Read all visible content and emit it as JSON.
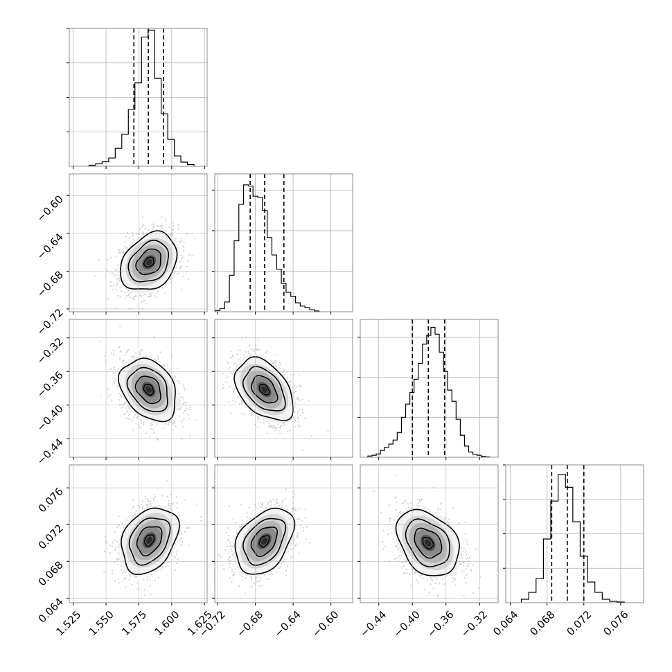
{
  "chart_data": {
    "type": "corner",
    "grid": true,
    "colors": {
      "hist": "#000000",
      "contour": "#000000",
      "scatter": "#9a9a9a",
      "grid": "#b0b0b0",
      "axes": "#888888"
    },
    "params": [
      {
        "lim": [
          1.522,
          1.627
        ],
        "ticks": [
          1.525,
          1.55,
          1.575,
          1.6,
          1.625
        ],
        "tick_labels": [
          "1.525",
          "1.550",
          "1.575",
          "1.600",
          "1.625"
        ],
        "hist_max": 4.0,
        "hist_yticks": [
          1,
          2,
          3,
          4
        ],
        "quantiles": [
          1.5712,
          1.5822,
          1.5938
        ],
        "hist": {
          "edges": [
            1.537,
            1.542,
            1.547,
            1.552,
            1.557,
            1.562,
            1.567,
            1.572,
            1.577,
            1.582,
            1.587,
            1.592,
            1.597,
            1.602,
            1.607,
            1.612,
            1.617
          ],
          "counts": [
            0.03,
            0.07,
            0.13,
            0.24,
            0.52,
            0.93,
            1.65,
            2.42,
            3.75,
            3.95,
            2.55,
            1.52,
            0.78,
            0.3,
            0.12,
            0.05
          ]
        }
      },
      {
        "lim": [
          -0.723,
          -0.577
        ],
        "ticks": [
          -0.72,
          -0.68,
          -0.64,
          -0.6
        ],
        "tick_labels": [
          "−0.72",
          "−0.68",
          "−0.64",
          "−0.60"
        ],
        "hist_max": 3.4,
        "hist_yticks": [
          1,
          2,
          3
        ],
        "quantiles": [
          -0.6855,
          -0.6702,
          -0.6498
        ],
        "hist": {
          "edges": [
            -0.7225,
            -0.7175,
            -0.7125,
            -0.7075,
            -0.7025,
            -0.6975,
            -0.6925,
            -0.6875,
            -0.6825,
            -0.6775,
            -0.6725,
            -0.6675,
            -0.6625,
            -0.6575,
            -0.6525,
            -0.6475,
            -0.6425,
            -0.6375,
            -0.6325,
            -0.6275,
            -0.6225,
            -0.6175,
            -0.6125
          ],
          "counts": [
            0.03,
            0.08,
            0.24,
            0.9,
            1.75,
            2.65,
            3.13,
            3.1,
            2.85,
            2.82,
            2.5,
            1.83,
            1.4,
            1.05,
            0.7,
            0.48,
            0.38,
            0.22,
            0.14,
            0.1,
            0.05,
            0.02
          ]
        }
      },
      {
        "lim": [
          -0.462,
          -0.298
        ],
        "ticks": [
          -0.44,
          -0.4,
          -0.36,
          -0.32
        ],
        "tick_labels": [
          "−0.44",
          "−0.40",
          "−0.36",
          "−0.32"
        ],
        "hist_max": 3.45,
        "hist_yticks": [
          1,
          2,
          3
        ],
        "quantiles": [
          -0.4,
          -0.381,
          -0.3617
        ],
        "hist": {
          "edges": [
            -0.453,
            -0.448,
            -0.443,
            -0.438,
            -0.433,
            -0.428,
            -0.423,
            -0.418,
            -0.413,
            -0.408,
            -0.403,
            -0.398,
            -0.393,
            -0.388,
            -0.383,
            -0.378,
            -0.373,
            -0.368,
            -0.363,
            -0.358,
            -0.353,
            -0.348,
            -0.343,
            -0.338,
            -0.333,
            -0.328,
            -0.323,
            -0.318,
            -0.313,
            -0.308
          ],
          "counts": [
            0.03,
            0.05,
            0.08,
            0.17,
            0.25,
            0.33,
            0.43,
            0.62,
            1.0,
            1.33,
            1.62,
            1.95,
            2.35,
            2.83,
            3.05,
            3.25,
            3.08,
            2.63,
            2.15,
            1.68,
            1.4,
            0.95,
            0.55,
            0.28,
            0.13,
            0.07,
            0.05,
            0.02,
            0.01
          ]
        }
      },
      {
        "lim": [
          0.0635,
          0.0785
        ],
        "ticks": [
          0.064,
          0.068,
          0.072,
          0.076
        ],
        "tick_labels": [
          "0.064",
          "0.068",
          "0.072",
          "0.076"
        ],
        "hist_max": 4.0,
        "hist_yticks": [
          1,
          2,
          3,
          4
        ],
        "quantiles": [
          0.0685,
          0.0702,
          0.072
        ],
        "hist": {
          "edges": [
            0.0652,
            0.066,
            0.0668,
            0.0676,
            0.0684,
            0.0692,
            0.07,
            0.0708,
            0.0716,
            0.0724,
            0.0732,
            0.074,
            0.0748,
            0.0756,
            0.0764
          ],
          "counts": [
            0.1,
            0.3,
            0.7,
            1.85,
            2.95,
            3.72,
            3.35,
            2.35,
            1.35,
            0.6,
            0.3,
            0.1,
            0.04,
            0.02
          ]
        }
      }
    ],
    "pairs": [
      {
        "row": 1,
        "col": 0,
        "mean": [
          1.5828,
          -0.6705
        ],
        "sd": [
          0.0105,
          0.015
        ],
        "rho": 0.28,
        "tilt": 1
      },
      {
        "row": 2,
        "col": 0,
        "mean": [
          1.5825,
          -0.3815
        ],
        "sd": [
          0.0105,
          0.018
        ],
        "rho": -0.3,
        "tilt": -1
      },
      {
        "row": 2,
        "col": 1,
        "mean": [
          -0.6705,
          -0.3815
        ],
        "sd": [
          0.015,
          0.018
        ],
        "rho": -0.42,
        "tilt": -1
      },
      {
        "row": 3,
        "col": 0,
        "mean": [
          1.583,
          0.0703
        ],
        "sd": [
          0.0105,
          0.00175
        ],
        "rho": 0.3,
        "tilt": 1
      },
      {
        "row": 3,
        "col": 1,
        "mean": [
          -0.6705,
          0.0702
        ],
        "sd": [
          0.015,
          0.00175
        ],
        "rho": 0.38,
        "tilt": 1
      },
      {
        "row": 3,
        "col": 2,
        "mean": [
          -0.3815,
          0.07
        ],
        "sd": [
          0.018,
          0.00175
        ],
        "rho": -0.32,
        "tilt": -1
      }
    ]
  }
}
